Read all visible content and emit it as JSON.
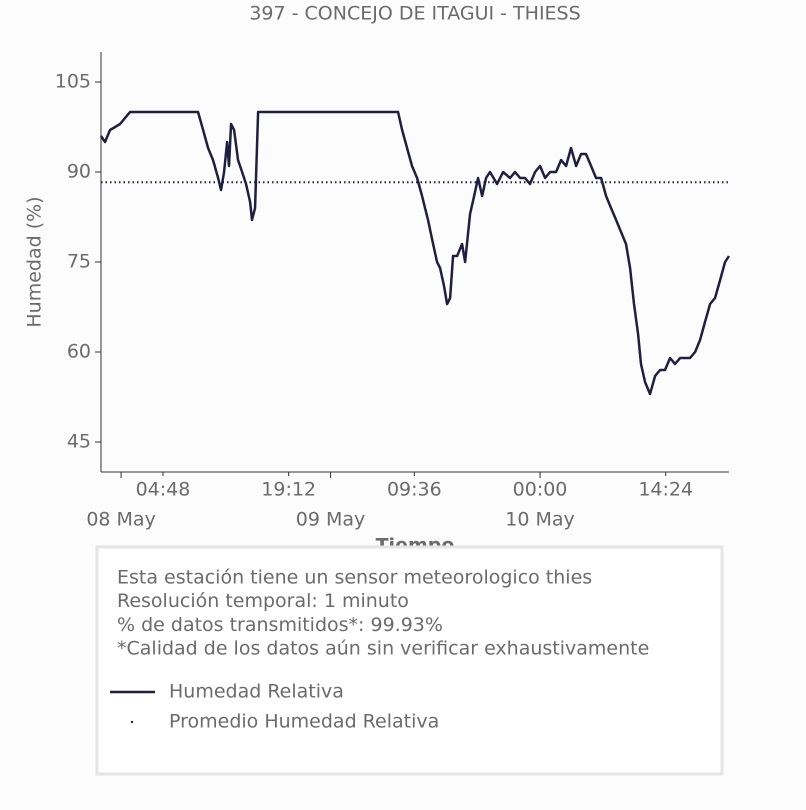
{
  "chart_data": {
    "type": "line",
    "title": "397 - CONCEJO DE ITAGUI - THIESS",
    "ylabel": "Humedad (%)",
    "xlabel": "Tiempo",
    "x": [
      "07 May 21:42",
      "07 May 22:10",
      "07 May 22:44",
      "07 May 23:19",
      "07 May 23:53",
      "08 May 00:27",
      "08 May 01:02",
      "08 May 08:49",
      "08 May 09:24",
      "08 May 09:58",
      "08 May 10:32",
      "08 May 11:07",
      "08 May 11:27",
      "08 May 11:48",
      "08 May 12:09",
      "08 May 12:22",
      "08 May 12:36",
      "08 May 12:57",
      "08 May 13:24",
      "08 May 13:52",
      "08 May 14:19",
      "08 May 14:47",
      "08 May 15:00",
      "08 May 15:21",
      "08 May 15:42",
      "09 May 07:44",
      "09 May 08:12",
      "09 May 08:46",
      "09 May 09:20",
      "09 May 09:55",
      "09 May 10:29",
      "09 May 11:10",
      "09 May 11:45",
      "09 May 12:12",
      "09 May 12:33",
      "09 May 13:00",
      "09 May 13:21",
      "09 May 13:42",
      "09 May 14:02",
      "09 May 14:30",
      "09 May 15:04",
      "09 May 15:25",
      "09 May 15:59",
      "09 May 16:27",
      "09 May 16:54",
      "09 May 17:22",
      "09 May 17:49",
      "09 May 18:16",
      "09 May 19:05",
      "09 May 19:46",
      "09 May 20:34",
      "09 May 21:08",
      "09 May 21:43",
      "09 May 22:17",
      "09 May 22:51",
      "09 May 23:26",
      "10 May 00:00",
      "10 May 00:35",
      "10 May 01:09",
      "10 May 01:50",
      "10 May 02:25",
      "10 May 02:59",
      "10 May 03:33",
      "10 May 04:08",
      "10 May 04:42",
      "10 May 05:16",
      "10 May 05:51",
      "10 May 06:25",
      "10 May 07:00",
      "10 May 07:34",
      "10 May 08:08",
      "10 May 08:43",
      "10 May 09:17",
      "10 May 09:51",
      "10 May 10:19",
      "10 May 10:46",
      "10 May 11:14",
      "10 May 11:34",
      "10 May 12:02",
      "10 May 12:36",
      "10 May 13:11",
      "10 May 13:45",
      "10 May 14:19",
      "10 May 14:54",
      "10 May 15:28",
      "10 May 16:03",
      "10 May 16:37",
      "10 May 17:11",
      "10 May 17:46",
      "10 May 18:20",
      "10 May 18:54",
      "10 May 19:29",
      "10 May 20:03",
      "10 May 20:38",
      "10 May 21:12",
      "10 May 21:39"
    ],
    "series": [
      {
        "name": "Humedad Relativa",
        "color": "#1f1f3f",
        "values": [
          96,
          95,
          97,
          97.5,
          98,
          99,
          100,
          100,
          97,
          94,
          92,
          89,
          87,
          90,
          95,
          91,
          98,
          97,
          92,
          90,
          88,
          85,
          82,
          84,
          100,
          100,
          97,
          94,
          91,
          89,
          86,
          82,
          78,
          75,
          74,
          71,
          68,
          69,
          76,
          76,
          78,
          75,
          83,
          86,
          89,
          86,
          89,
          90,
          88,
          90,
          89,
          90,
          89,
          89,
          88,
          90,
          91,
          89,
          90,
          90,
          92,
          91,
          94,
          91,
          93,
          93,
          91,
          89,
          89,
          86,
          84,
          82,
          80,
          78,
          74,
          68,
          63,
          58,
          55,
          53,
          56,
          57,
          57,
          59,
          58,
          59,
          59,
          59,
          60,
          62,
          65,
          68,
          69,
          72,
          75,
          76
        ]
      },
      {
        "name": "Promedio Humedad Relativa",
        "color": "#1f1f3f",
        "mean_value": 88.3,
        "style": "dotted"
      }
    ],
    "xlim": [
      "07 May 21:42",
      "10 May 21:39"
    ],
    "xticks": [
      {
        "value": "08 May 04:48",
        "label": "04:48"
      },
      {
        "value": "08 May 19:12",
        "label": "19:12"
      },
      {
        "value": "09 May 09:36",
        "label": "09:36"
      },
      {
        "value": "10 May 00:00",
        "label": "00:00"
      },
      {
        "value": "10 May 14:24",
        "label": "14:24"
      }
    ],
    "xticks_major": [
      {
        "value": "08 May 00:00",
        "label": "08 May"
      },
      {
        "value": "09 May 00:00",
        "label": "09 May"
      },
      {
        "value": "10 May 00:00",
        "label": "10 May"
      }
    ],
    "ylim": [
      40,
      110
    ],
    "yticks": [
      45,
      60,
      75,
      90,
      105
    ],
    "notes": [
      "Esta estación tiene un sensor meteorologico thies",
      "Resolución temporal: 1 minuto",
      "% de datos transmitidos*: 99.93%",
      "*Calidad de los datos aún sin verificar exhaustivamente"
    ]
  }
}
